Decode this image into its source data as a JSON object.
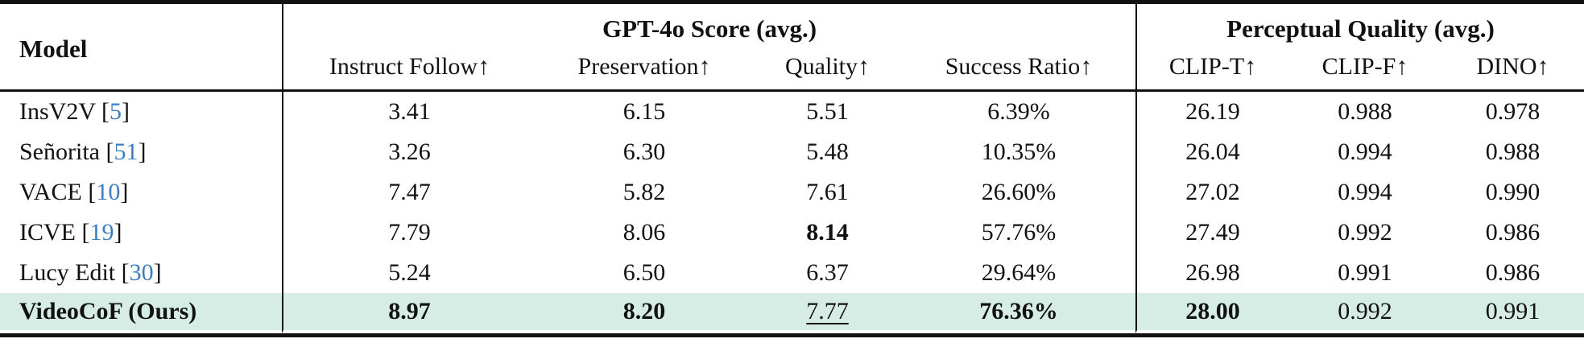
{
  "colors": {
    "citation_link": "#3c7dc2",
    "highlight_row": "#d6ede5",
    "text": "#111111",
    "background": "#ffffff"
  },
  "table": {
    "model_header": "Model",
    "groups": [
      "GPT-4o Score (avg.)",
      "Perceptual Quality (avg.)"
    ],
    "subheaders": [
      "Instruct Follow↑",
      "Preservation↑",
      "Quality↑",
      "Success Ratio↑",
      "CLIP-T↑",
      "CLIP-F↑",
      "DINO↑"
    ],
    "rows": [
      {
        "model": "InsV2V",
        "cite": "5",
        "bold": false,
        "highlight": false,
        "cells": [
          {
            "v": "3.41"
          },
          {
            "v": "6.15"
          },
          {
            "v": "5.51"
          },
          {
            "v": "6.39%"
          },
          {
            "v": "26.19"
          },
          {
            "v": "0.988"
          },
          {
            "v": "0.978"
          }
        ]
      },
      {
        "model": "Señorita",
        "cite": "51",
        "bold": false,
        "highlight": false,
        "cells": [
          {
            "v": "3.26"
          },
          {
            "v": "6.30"
          },
          {
            "v": "5.48"
          },
          {
            "v": "10.35%"
          },
          {
            "v": "26.04"
          },
          {
            "v": "0.994"
          },
          {
            "v": "0.988"
          }
        ]
      },
      {
        "model": "VACE",
        "cite": "10",
        "bold": false,
        "highlight": false,
        "cells": [
          {
            "v": "7.47"
          },
          {
            "v": "5.82"
          },
          {
            "v": "7.61"
          },
          {
            "v": "26.60%"
          },
          {
            "v": "27.02"
          },
          {
            "v": "0.994"
          },
          {
            "v": "0.990"
          }
        ]
      },
      {
        "model": "ICVE",
        "cite": "19",
        "bold": false,
        "highlight": false,
        "cells": [
          {
            "v": "7.79"
          },
          {
            "v": "8.06"
          },
          {
            "v": "8.14",
            "b": true
          },
          {
            "v": "57.76%"
          },
          {
            "v": "27.49"
          },
          {
            "v": "0.992"
          },
          {
            "v": "0.986"
          }
        ]
      },
      {
        "model": "Lucy Edit",
        "cite": "30",
        "bold": false,
        "highlight": false,
        "cells": [
          {
            "v": "5.24"
          },
          {
            "v": "6.50"
          },
          {
            "v": "6.37"
          },
          {
            "v": "29.64%"
          },
          {
            "v": "26.98"
          },
          {
            "v": "0.991"
          },
          {
            "v": "0.986"
          }
        ]
      },
      {
        "model": "VideoCoF (Ours)",
        "cite": "",
        "bold": true,
        "highlight": true,
        "cells": [
          {
            "v": "8.97",
            "b": true
          },
          {
            "v": "8.20",
            "b": true
          },
          {
            "v": "7.77",
            "u": true
          },
          {
            "v": "76.36%",
            "b": true
          },
          {
            "v": "28.00",
            "b": true
          },
          {
            "v": "0.992"
          },
          {
            "v": "0.991"
          }
        ]
      }
    ]
  }
}
